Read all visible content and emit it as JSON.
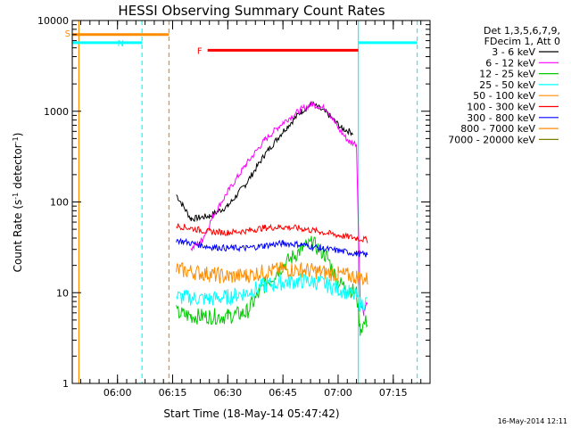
{
  "chart_data": {
    "type": "line",
    "title": "HESSI Observing Summary Count Rates",
    "xlabel": "Start Time (18-May-14 05:47:42)",
    "ylabel": "Count Rate (s⁻¹ detector⁻¹)",
    "ylabel_main": "Count Rate (s",
    "ylabel_sup1": "-1",
    "ylabel_mid": " detector",
    "ylabel_sup2": "-1",
    "ylabel_end": ")",
    "yscale": "log",
    "ylim": [
      1,
      10000
    ],
    "xlim": [
      "05:47:42",
      "07:25:00"
    ],
    "x_ticks": [
      "06:00",
      "06:15",
      "06:30",
      "06:45",
      "07:00",
      "07:15"
    ],
    "y_ticks": [
      "1",
      "10",
      "100",
      "1000",
      "10000"
    ],
    "footer_date": "16-May-2014 12:11",
    "legend": {
      "header1": "Det 1,3,5,6,7,9,",
      "header2": "FDecim 1, Att 0",
      "entries": [
        {
          "label": "3 - 6 keV",
          "color": "#000000"
        },
        {
          "label": "6 - 12 keV",
          "color": "#ff00ff"
        },
        {
          "label": "12 - 25 keV",
          "color": "#00cc00"
        },
        {
          "label": "25 - 50 keV",
          "color": "#00ffff"
        },
        {
          "label": "50 - 100 keV",
          "color": "#ff8c00"
        },
        {
          "label": "100 - 300 keV",
          "color": "#ff0000"
        },
        {
          "label": "300 - 800 keV",
          "color": "#0000ff"
        },
        {
          "label": "800 - 7000 keV",
          "color": "#ff8c00"
        },
        {
          "label": "7000 - 20000 keV",
          "color": "#808000"
        }
      ]
    },
    "flags": [
      {
        "label": "S",
        "color": "#ff8c00",
        "level": 7000,
        "start": "05:47:42",
        "end": "06:14:00"
      },
      {
        "label": "N",
        "color": "#00ffff",
        "level": 5700,
        "start": "05:47:42",
        "end": "06:06:40"
      },
      {
        "label": "N",
        "color": "#00ffff",
        "level": 5700,
        "start": "07:05:30",
        "end": "07:21:30"
      },
      {
        "label": "F",
        "color": "#ff0000",
        "level": 4700,
        "start": "06:24:30",
        "end": "07:05:30"
      }
    ],
    "vertical_lines": [
      {
        "time": "05:47:42",
        "color": "#00ffff",
        "style": "solid"
      },
      {
        "time": "05:49:30",
        "color": "#ff8c00",
        "style": "solid"
      },
      {
        "time": "06:06:40",
        "color": "#00ffff",
        "style": "dashed"
      },
      {
        "time": "06:14:00",
        "color": "#ff8c00",
        "style": "dashed"
      },
      {
        "time": "07:05:30",
        "color": "#00ffff",
        "style": "solid"
      },
      {
        "time": "07:21:30",
        "color": "#00ffff",
        "style": "dashed"
      }
    ],
    "series": [
      {
        "name": "3 - 6 keV",
        "color": "#000000",
        "x": [
          "06:16",
          "06:20",
          "06:25",
          "06:30",
          "06:35",
          "06:40",
          "06:45",
          "06:50",
          "06:53",
          "06:57",
          "07:01",
          "07:04"
        ],
        "y": [
          120,
          65,
          70,
          90,
          160,
          330,
          600,
          1000,
          1200,
          950,
          650,
          580
        ]
      },
      {
        "name": "6 - 12 keV",
        "color": "#ff00ff",
        "x": [
          "06:20",
          "06:23",
          "06:26",
          "06:30",
          "06:35",
          "06:40",
          "06:45",
          "06:50",
          "06:53",
          "06:57",
          "07:00",
          "07:03",
          "07:05",
          "07:06",
          "07:07",
          "07:08"
        ],
        "y": [
          30,
          38,
          70,
          130,
          260,
          480,
          750,
          1050,
          1200,
          1050,
          650,
          460,
          440,
          8,
          6,
          8
        ]
      },
      {
        "name": "12 - 25 keV",
        "color": "#00cc00",
        "x": [
          "06:16",
          "06:20",
          "06:25",
          "06:30",
          "06:35",
          "06:40",
          "06:45",
          "06:50",
          "06:53",
          "06:57",
          "07:00",
          "07:03",
          "07:05",
          "07:06",
          "07:08"
        ],
        "y": [
          6,
          5.5,
          5.5,
          5.5,
          6,
          12,
          20,
          30,
          35,
          25,
          13,
          11,
          10,
          4,
          5
        ]
      },
      {
        "name": "25 - 50 keV",
        "color": "#00ffff",
        "x": [
          "06:16",
          "06:25",
          "06:30",
          "06:35",
          "06:40",
          "06:45",
          "06:50",
          "06:55",
          "07:00",
          "07:03",
          "07:05",
          "07:06",
          "07:08"
        ],
        "y": [
          9,
          8.5,
          9,
          10,
          12,
          13,
          13.5,
          13,
          11,
          10,
          9,
          7.5,
          8
        ]
      },
      {
        "name": "50 - 100 keV",
        "color": "#ff8c00",
        "x": [
          "06:16",
          "06:25",
          "06:30",
          "06:35",
          "06:40",
          "06:45",
          "06:50",
          "06:55",
          "07:00",
          "07:05",
          "07:08"
        ],
        "y": [
          18,
          16,
          15,
          15.5,
          17,
          18,
          18,
          17,
          16,
          15,
          14
        ]
      },
      {
        "name": "100 - 300 keV",
        "color": "#ff0000",
        "x": [
          "06:16",
          "06:25",
          "06:30",
          "06:35",
          "06:40",
          "06:45",
          "06:50",
          "06:55",
          "07:00",
          "07:05",
          "07:08"
        ],
        "y": [
          55,
          47,
          46,
          48,
          52,
          53,
          51,
          47,
          43,
          40,
          38
        ]
      },
      {
        "name": "300 - 800 keV",
        "color": "#0000ff",
        "x": [
          "06:16",
          "06:25",
          "06:30",
          "06:35",
          "06:40",
          "06:45",
          "06:50",
          "06:55",
          "07:00",
          "07:05",
          "07:08"
        ],
        "y": [
          38,
          32,
          31,
          31,
          33,
          35,
          34,
          31,
          29,
          27,
          26
        ]
      }
    ]
  }
}
